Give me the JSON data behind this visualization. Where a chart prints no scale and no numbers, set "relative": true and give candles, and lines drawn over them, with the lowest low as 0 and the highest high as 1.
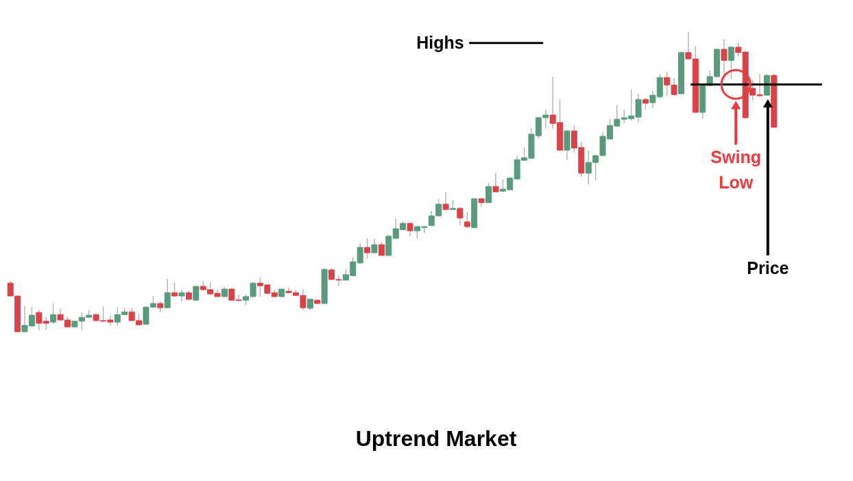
{
  "chart_data": {
    "type": "candlestick",
    "title": "Uptrend Market",
    "relative": true,
    "categories": [
      null,
      null,
      null,
      null,
      null,
      null,
      null,
      null,
      null,
      null,
      null,
      null,
      null,
      null,
      null,
      null,
      null,
      null,
      null,
      null,
      null,
      null,
      null,
      null,
      null,
      null,
      null,
      null,
      null,
      null,
      null,
      null,
      null,
      null,
      null,
      null,
      null,
      null,
      null,
      null,
      null,
      null,
      null,
      null,
      null,
      null,
      null,
      null,
      null,
      null,
      null,
      null,
      null,
      null,
      null,
      null,
      null,
      null,
      null,
      null,
      null,
      null,
      null,
      null,
      null,
      null,
      null,
      null,
      null,
      null,
      null,
      null,
      null,
      null,
      null,
      null,
      null,
      null,
      null,
      null,
      null,
      null,
      null,
      null,
      null,
      null,
      null,
      null,
      null,
      null,
      null,
      null,
      null,
      null,
      null,
      null,
      null,
      null,
      null,
      null,
      null,
      null,
      null,
      null,
      null,
      null,
      null,
      null
    ],
    "ohlc": [
      [
        0.164,
        0.171,
        0.121,
        0.121
      ],
      [
        0.121,
        0.121,
        0,
        0.002
      ],
      [
        0.002,
        0.087,
        0,
        0.023
      ],
      [
        0.021,
        0.084,
        0.018,
        0.057
      ],
      [
        0.066,
        0.075,
        0.007,
        0.03
      ],
      [
        0.037,
        0.05,
        0.009,
        0.03
      ],
      [
        0.034,
        0.096,
        0.027,
        0.059
      ],
      [
        0.059,
        0.078,
        0.039,
        0.041
      ],
      [
        0.041,
        0.053,
        0.016,
        0.018
      ],
      [
        0.018,
        0.039,
        0.016,
        0.037
      ],
      [
        0.037,
        0.066,
        0.007,
        0.05
      ],
      [
        0.05,
        0.073,
        0.048,
        0.057
      ],
      [
        0.059,
        0.064,
        0.037,
        0.039
      ],
      [
        0.039,
        0.087,
        0.034,
        0.037
      ],
      [
        0.041,
        0.055,
        0.023,
        0.034
      ],
      [
        0.034,
        0.084,
        0.023,
        0.059
      ],
      [
        0.059,
        0.08,
        0.057,
        0.068
      ],
      [
        0.068,
        0.08,
        0.037,
        0.039
      ],
      [
        0.039,
        0.062,
        0.023,
        0.025
      ],
      [
        0.027,
        0.087,
        0.025,
        0.084
      ],
      [
        0.084,
        0.121,
        0.082,
        0.096
      ],
      [
        0.096,
        0.103,
        0.066,
        0.082
      ],
      [
        0.082,
        0.178,
        0.08,
        0.132
      ],
      [
        0.132,
        0.167,
        0.119,
        0.121
      ],
      [
        0.121,
        0.142,
        0.103,
        0.132
      ],
      [
        0.132,
        0.139,
        0.107,
        0.11
      ],
      [
        0.107,
        0.155,
        0.105,
        0.153
      ],
      [
        0.153,
        0.171,
        0.139,
        0.142
      ],
      [
        0.142,
        0.167,
        0.123,
        0.128
      ],
      [
        0.13,
        0.142,
        0.116,
        0.119
      ],
      [
        0.119,
        0.151,
        0.116,
        0.144
      ],
      [
        0.144,
        0.148,
        0.105,
        0.107
      ],
      [
        0.108,
        0.126,
        0.103,
        0.106
      ],
      [
        0.107,
        0.126,
        0.091,
        0.119
      ],
      [
        0.119,
        0.167,
        0.116,
        0.164
      ],
      [
        0.164,
        0.183,
        0.119,
        0.155
      ],
      [
        0.158,
        0.16,
        0.126,
        0.13
      ],
      [
        0.132,
        0.142,
        0.116,
        0.119
      ],
      [
        0.119,
        0.144,
        0.116,
        0.144
      ],
      [
        0.137,
        0.148,
        0.13,
        0.132
      ],
      [
        0.132,
        0.142,
        0.121,
        0.123
      ],
      [
        0.123,
        0.142,
        0.075,
        0.082
      ],
      [
        0.08,
        0.112,
        0.075,
        0.11
      ],
      [
        0.107,
        0.11,
        0.094,
        0.096
      ],
      [
        0.096,
        0.212,
        0.094,
        0.21
      ],
      [
        0.208,
        0.215,
        0.174,
        0.176
      ],
      [
        0.176,
        0.189,
        0.155,
        0.174
      ],
      [
        0.174,
        0.21,
        0.171,
        0.192
      ],
      [
        0.189,
        0.251,
        0.187,
        0.235
      ],
      [
        0.231,
        0.297,
        0.228,
        0.283
      ],
      [
        0.283,
        0.313,
        0.244,
        0.265
      ],
      [
        0.265,
        0.313,
        0.263,
        0.292
      ],
      [
        0.292,
        0.301,
        0.256,
        0.256
      ],
      [
        0.256,
        0.326,
        0.256,
        0.32
      ],
      [
        0.313,
        0.379,
        0.311,
        0.345
      ],
      [
        0.342,
        0.37,
        0.34,
        0.363
      ],
      [
        0.363,
        0.365,
        0.32,
        0.338
      ],
      [
        0.338,
        0.356,
        0.313,
        0.352
      ],
      [
        0.349,
        0.354,
        0.331,
        0.352
      ],
      [
        0.356,
        0.404,
        0.354,
        0.388
      ],
      [
        0.388,
        0.445,
        0.386,
        0.427
      ],
      [
        0.427,
        0.468,
        0.406,
        0.409
      ],
      [
        0.409,
        0.441,
        0.406,
        0.413
      ],
      [
        0.413,
        0.418,
        0.356,
        0.381
      ],
      [
        0.368,
        0.4,
        0.347,
        0.352
      ],
      [
        0.349,
        0.447,
        0.347,
        0.445
      ],
      [
        0.445,
        0.45,
        0.418,
        0.432
      ],
      [
        0.432,
        0.498,
        0.432,
        0.486
      ],
      [
        0.486,
        0.53,
        0.468,
        0.468
      ],
      [
        0.47,
        0.509,
        0.468,
        0.477
      ],
      [
        0.475,
        0.516,
        0.473,
        0.514
      ],
      [
        0.511,
        0.587,
        0.511,
        0.575
      ],
      [
        0.573,
        0.616,
        0.571,
        0.582
      ],
      [
        0.58,
        0.68,
        0.58,
        0.66
      ],
      [
        0.655,
        0.719,
        0.646,
        0.715
      ],
      [
        0.715,
        0.742,
        0.68,
        0.724
      ],
      [
        0.724,
        0.852,
        0.678,
        0.696
      ],
      [
        0.699,
        0.776,
        0.605,
        0.607
      ],
      [
        0.607,
        0.674,
        0.575,
        0.671
      ],
      [
        0.671,
        0.689,
        0.6,
        0.614
      ],
      [
        0.616,
        0.635,
        0.518,
        0.53
      ],
      [
        0.53,
        0.605,
        0.493,
        0.566
      ],
      [
        0.566,
        0.591,
        0.507,
        0.589
      ],
      [
        0.589,
        0.667,
        0.587,
        0.653
      ],
      [
        0.644,
        0.71,
        0.642,
        0.689
      ],
      [
        0.687,
        0.756,
        0.685,
        0.71
      ],
      [
        0.71,
        0.742,
        0.696,
        0.715
      ],
      [
        0.712,
        0.808,
        0.705,
        0.721
      ],
      [
        0.717,
        0.794,
        0.699,
        0.776
      ],
      [
        0.776,
        0.781,
        0.742,
        0.763
      ],
      [
        0.765,
        0.804,
        0.747,
        0.79
      ],
      [
        0.785,
        0.861,
        0.779,
        0.849
      ],
      [
        0.849,
        0.868,
        0.788,
        0.824
      ],
      [
        0.824,
        0.847,
        0.79,
        0.792
      ],
      [
        0.795,
        0.936,
        0.792,
        0.932
      ],
      [
        0.932,
        1,
        0.909,
        0.911
      ],
      [
        0.911,
        0.954,
        0.731,
        0.733
      ],
      [
        0.733,
        0.824,
        0.712,
        0.822
      ],
      [
        0.822,
        0.872,
        0.82,
        0.852
      ],
      [
        0.852,
        0.945,
        0.849,
        0.943
      ],
      [
        0.943,
        0.977,
        0.84,
        0.906
      ],
      [
        0.906,
        0.954,
        0.845,
        0.95
      ],
      [
        0.95,
        0.966,
        0.918,
        0.932
      ],
      [
        0.934,
        0.938,
        0.712,
        0.715
      ],
      [
        0.813,
        0.84,
        0.772,
        0.79
      ],
      [
        0.792,
        0.861,
        0.785,
        0.788
      ],
      [
        0.79,
        0.861,
        0.788,
        0.856
      ],
      [
        0.856,
        0.861,
        0.683,
        0.683
      ]
    ],
    "annotations": [
      "Highs",
      "Swing Low",
      "Price"
    ]
  }
}
